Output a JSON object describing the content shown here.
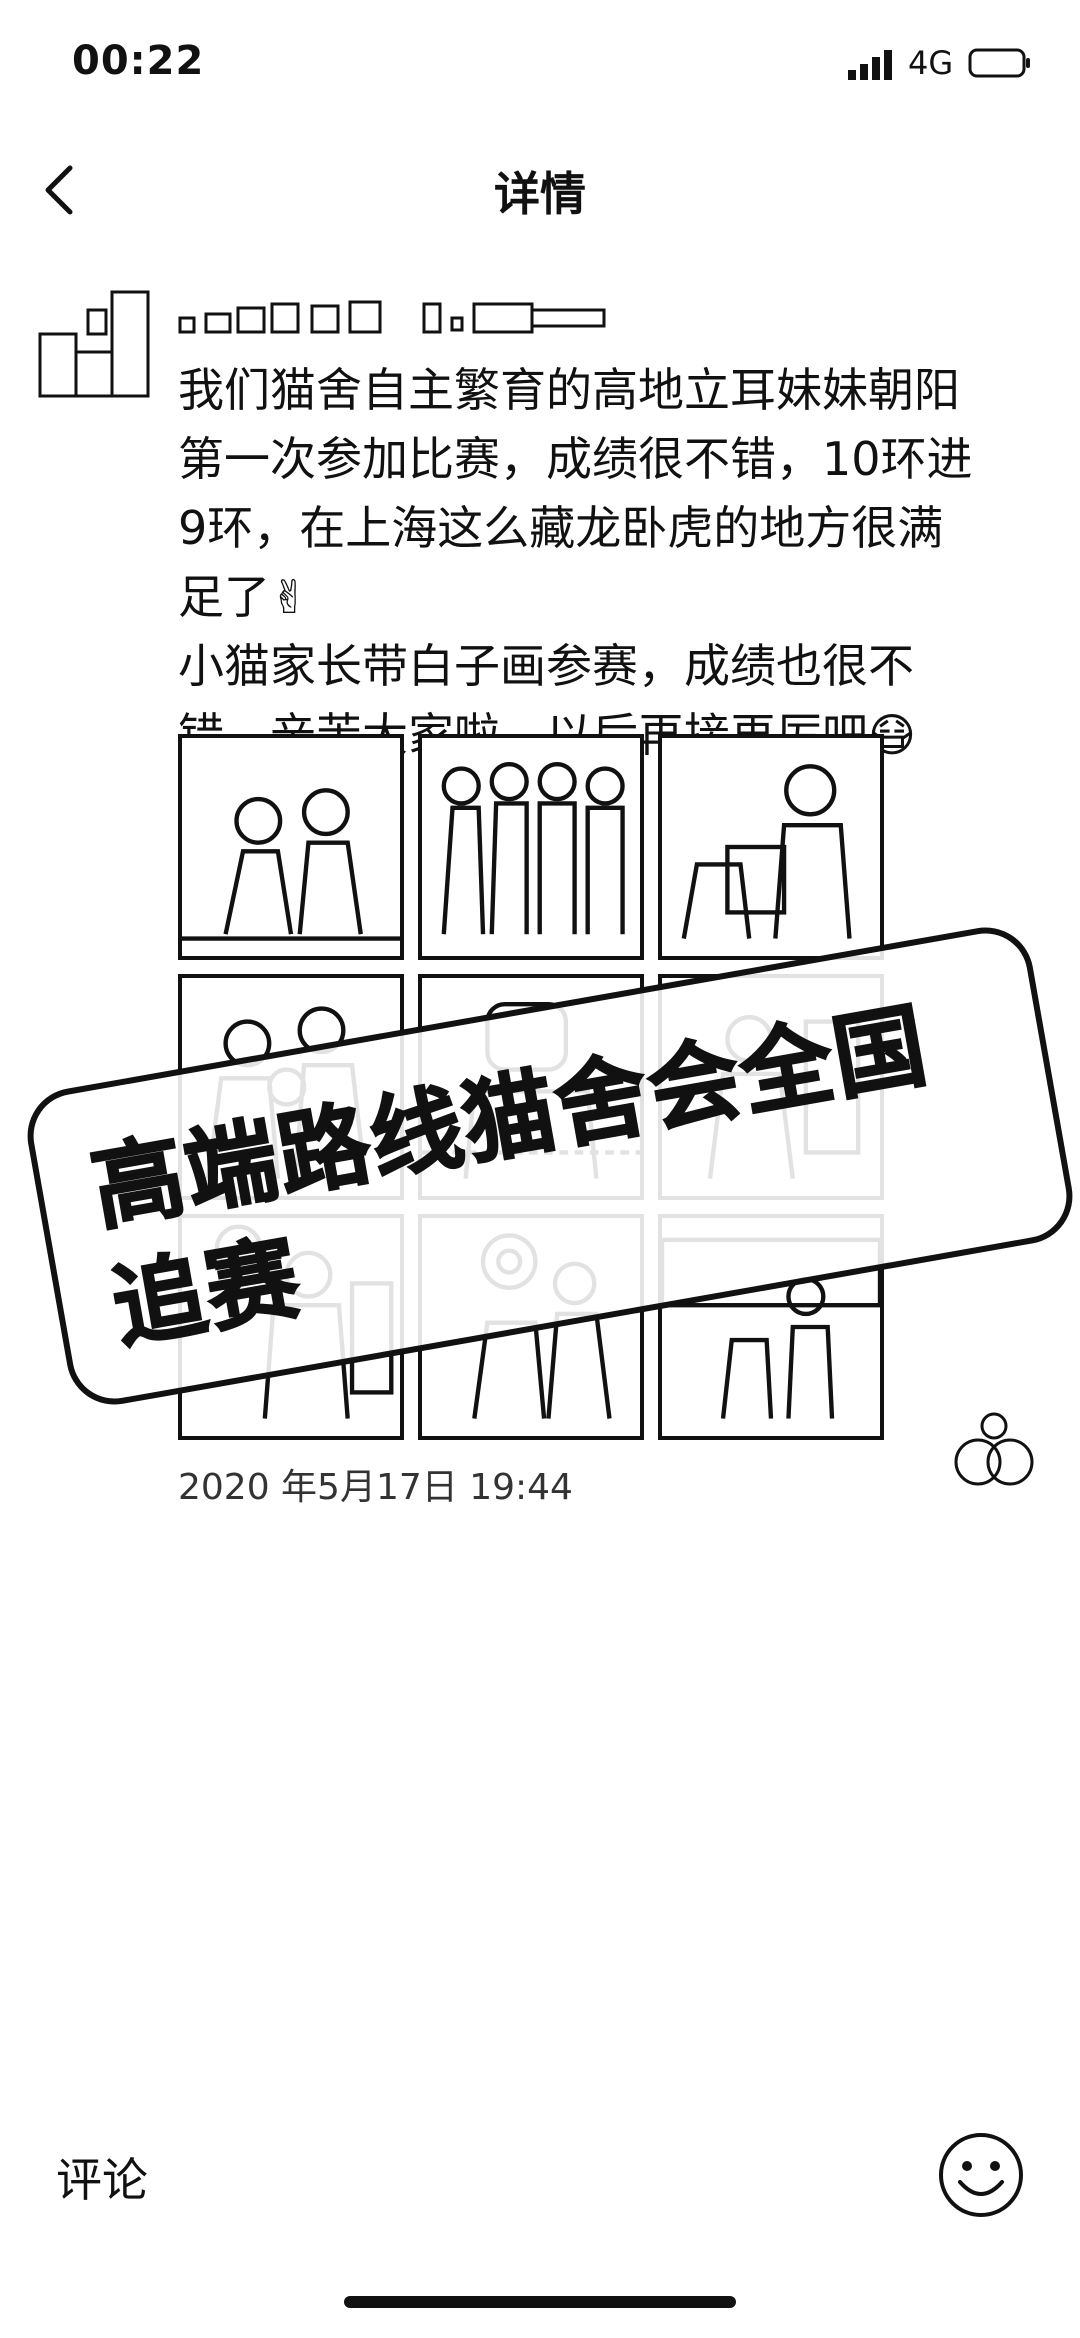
{
  "status_bar": {
    "time": "00:22",
    "network": "4G"
  },
  "nav": {
    "title": "详情"
  },
  "post": {
    "text": "我们猫舍自主繁育的高地立耳妹妹朝阳\n第一次参加比赛，成绩很不错，10环进\n9环，在上海这么藏龙卧虎的地方很满\n足了✌\n小猫家长带白子画参赛，成绩也很不\n错，辛苦大家啦，以后再接再厉吧😷",
    "photo_count": 9,
    "timestamp": "2020 年5月17日 19:44"
  },
  "overlay": {
    "stamp_text": "高端路线猫舍会全国追赛"
  },
  "bottom": {
    "comment_label": "评论"
  },
  "icons": {
    "back": "chevron-left-icon",
    "like": "like-icon",
    "emoji": "smile-emoji-icon"
  }
}
